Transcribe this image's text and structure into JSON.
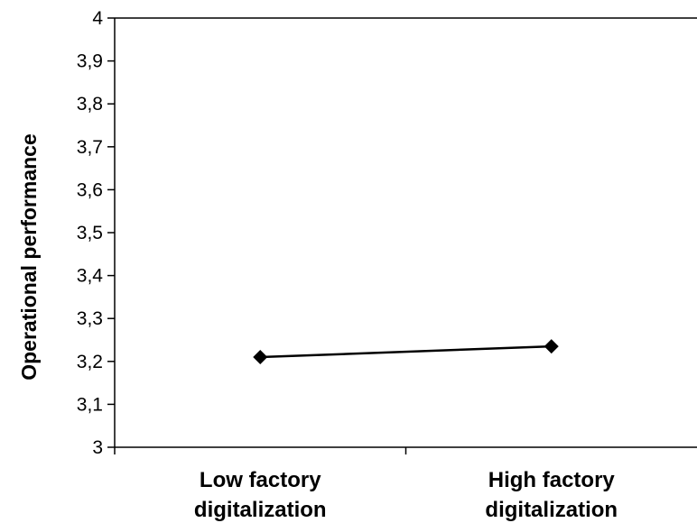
{
  "chart_data": {
    "type": "line",
    "title": "",
    "xlabel": "",
    "ylabel": "Operational performance",
    "categories": [
      "Low factory digitalization",
      "High factory digitalization"
    ],
    "category_lines": [
      [
        "Low factory",
        "digitalization"
      ],
      [
        "High factory",
        "digitalization"
      ]
    ],
    "series": [
      {
        "values": [
          3.21,
          3.235
        ],
        "color": "#000000",
        "marker": "diamond"
      }
    ],
    "ylim": [
      3,
      4
    ],
    "yticks": [
      3,
      3.1,
      3.2,
      3.3,
      3.4,
      3.5,
      3.6,
      3.7,
      3.8,
      3.9,
      4
    ],
    "ytick_labels": [
      "3",
      "3,1",
      "3,2",
      "3,3",
      "3,4",
      "3,5",
      "3,6",
      "3,7",
      "3,8",
      "3,9",
      "4"
    ],
    "grid": false,
    "legend": "none"
  }
}
